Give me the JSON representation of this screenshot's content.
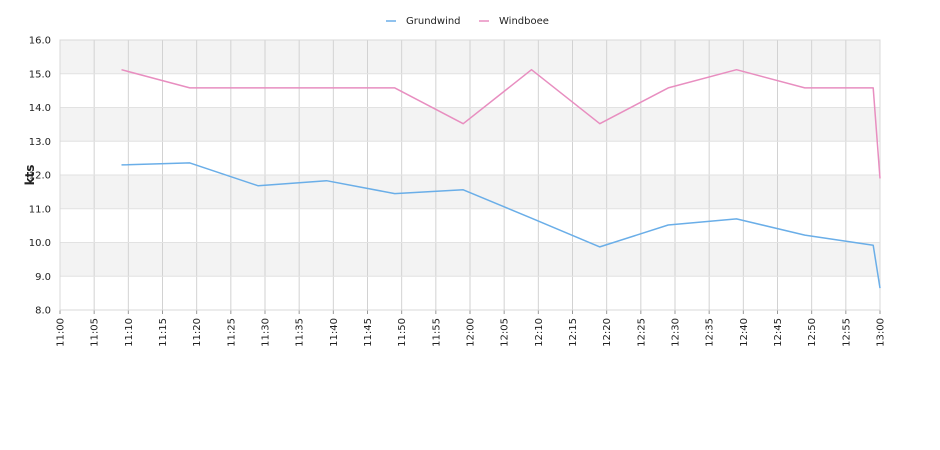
{
  "chart_data": {
    "type": "line",
    "title": "",
    "xlabel": "",
    "ylabel": "kts",
    "ylim": [
      8,
      16
    ],
    "yticks": [
      "8.0",
      "9.0",
      "10.0",
      "11.0",
      "12.0",
      "13.0",
      "14.0",
      "15.0",
      "16.0"
    ],
    "xlim": [
      "11:00",
      "13:00"
    ],
    "xticks": [
      "11:00",
      "11:05",
      "11:10",
      "11:15",
      "11:20",
      "11:25",
      "11:30",
      "11:35",
      "11:40",
      "11:45",
      "11:50",
      "11:55",
      "12:00",
      "12:05",
      "12:10",
      "12:15",
      "12:20",
      "12:25",
      "12:30",
      "12:35",
      "12:40",
      "12:45",
      "12:50",
      "12:55",
      "13:00"
    ],
    "grid": true,
    "legend": "top-center",
    "series": [
      {
        "name": "Grundwind",
        "color": "#6aaee8",
        "points": [
          {
            "x": "11:09",
            "y": 12.3
          },
          {
            "x": "11:19",
            "y": 12.36
          },
          {
            "x": "11:29",
            "y": 11.68
          },
          {
            "x": "11:39",
            "y": 11.83
          },
          {
            "x": "11:49",
            "y": 11.45
          },
          {
            "x": "11:59",
            "y": 11.56
          },
          {
            "x": "12:09",
            "y": 10.72
          },
          {
            "x": "12:19",
            "y": 9.87
          },
          {
            "x": "12:29",
            "y": 10.52
          },
          {
            "x": "12:39",
            "y": 10.7
          },
          {
            "x": "12:49",
            "y": 10.22
          },
          {
            "x": "12:59",
            "y": 9.92
          },
          {
            "x": "13:00",
            "y": 8.65
          }
        ]
      },
      {
        "name": "Windboee",
        "color": "#e88ec0",
        "points": [
          {
            "x": "11:09",
            "y": 15.12
          },
          {
            "x": "11:19",
            "y": 14.58
          },
          {
            "x": "11:29",
            "y": 14.58
          },
          {
            "x": "11:39",
            "y": 14.58
          },
          {
            "x": "11:49",
            "y": 14.58
          },
          {
            "x": "11:59",
            "y": 13.52
          },
          {
            "x": "12:09",
            "y": 15.12
          },
          {
            "x": "12:19",
            "y": 13.52
          },
          {
            "x": "12:29",
            "y": 14.58
          },
          {
            "x": "12:39",
            "y": 15.12
          },
          {
            "x": "12:49",
            "y": 14.58
          },
          {
            "x": "12:59",
            "y": 14.58
          },
          {
            "x": "13:00",
            "y": 11.9
          }
        ]
      }
    ]
  }
}
